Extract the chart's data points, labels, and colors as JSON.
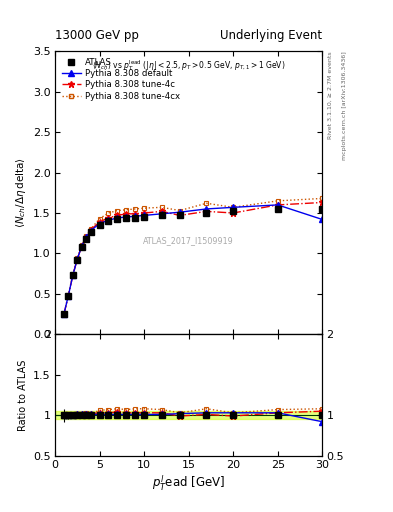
{
  "title_left": "13000 GeV pp",
  "title_right": "Underlying Event",
  "watermark": "ATLAS_2017_I1509919",
  "xlabel": "$p_T^l$ead [GeV]",
  "ylabel_main": "$\\langle N_{ch}/\\Delta\\eta\\,\\mathrm{delta}\\rangle$",
  "ylabel_ratio": "Ratio to ATLAS",
  "right_label1": "Rivet 3.1.10, ≥ 2.7M events",
  "right_label2": "mcplots.cern.ch [arXiv:1306.3436]",
  "xlim": [
    0,
    30
  ],
  "ylim_main": [
    0,
    3.5
  ],
  "ylim_ratio": [
    0.5,
    2.0
  ],
  "yticks_main": [
    0,
    0.5,
    1.0,
    1.5,
    2.0,
    2.5,
    3.0,
    3.5
  ],
  "yticks_ratio": [
    0.5,
    1.0,
    1.5,
    2.0
  ],
  "xticks": [
    0,
    5,
    10,
    15,
    20,
    25,
    30
  ],
  "atlas_x": [
    1.0,
    1.5,
    2.0,
    2.5,
    3.0,
    3.5,
    4.0,
    5.0,
    6.0,
    7.0,
    8.0,
    9.0,
    10.0,
    12.0,
    14.0,
    17.0,
    20.0,
    25.0,
    30.0
  ],
  "atlas_y": [
    0.25,
    0.48,
    0.73,
    0.92,
    1.08,
    1.18,
    1.27,
    1.35,
    1.4,
    1.42,
    1.44,
    1.44,
    1.45,
    1.47,
    1.48,
    1.5,
    1.52,
    1.55,
    1.55
  ],
  "atlas_yerr": [
    0.02,
    0.02,
    0.02,
    0.02,
    0.02,
    0.02,
    0.02,
    0.02,
    0.02,
    0.02,
    0.02,
    0.02,
    0.02,
    0.02,
    0.02,
    0.03,
    0.03,
    0.04,
    0.07
  ],
  "py_def_x": [
    1.0,
    1.5,
    2.0,
    2.5,
    3.0,
    3.5,
    4.0,
    5.0,
    6.0,
    7.0,
    8.0,
    9.0,
    10.0,
    12.0,
    14.0,
    17.0,
    20.0,
    25.0,
    30.0
  ],
  "py_def_y": [
    0.25,
    0.48,
    0.73,
    0.93,
    1.09,
    1.2,
    1.28,
    1.37,
    1.41,
    1.44,
    1.45,
    1.46,
    1.47,
    1.49,
    1.51,
    1.55,
    1.57,
    1.6,
    1.42
  ],
  "py_def_color": "#0000ee",
  "py_4c_x": [
    1.0,
    1.5,
    2.0,
    2.5,
    3.0,
    3.5,
    4.0,
    5.0,
    6.0,
    7.0,
    8.0,
    9.0,
    10.0,
    12.0,
    14.0,
    17.0,
    20.0,
    25.0,
    30.0
  ],
  "py_4c_y": [
    0.25,
    0.48,
    0.73,
    0.93,
    1.09,
    1.2,
    1.29,
    1.39,
    1.44,
    1.47,
    1.49,
    1.49,
    1.5,
    1.52,
    1.47,
    1.52,
    1.5,
    1.6,
    1.63
  ],
  "py_4c_color": "#ee0000",
  "py_4cx_x": [
    1.0,
    1.5,
    2.0,
    2.5,
    3.0,
    3.5,
    4.0,
    5.0,
    6.0,
    7.0,
    8.0,
    9.0,
    10.0,
    12.0,
    14.0,
    17.0,
    20.0,
    25.0,
    30.0
  ],
  "py_4cx_y": [
    0.25,
    0.49,
    0.74,
    0.94,
    1.1,
    1.21,
    1.3,
    1.43,
    1.5,
    1.53,
    1.54,
    1.55,
    1.56,
    1.57,
    1.53,
    1.62,
    1.57,
    1.65,
    1.68
  ],
  "py_4cx_color": "#cc5500",
  "ratio_def_y": [
    1.0,
    1.0,
    1.0,
    1.01,
    1.01,
    1.02,
    1.01,
    1.01,
    1.01,
    1.01,
    1.01,
    1.01,
    1.01,
    1.01,
    1.02,
    1.03,
    1.03,
    1.03,
    0.92
  ],
  "ratio_4c_y": [
    1.0,
    1.0,
    1.0,
    1.01,
    1.01,
    1.02,
    1.02,
    1.03,
    1.03,
    1.04,
    1.03,
    1.03,
    1.03,
    1.03,
    0.99,
    1.01,
    0.99,
    1.03,
    1.05
  ],
  "ratio_4cx_y": [
    1.0,
    1.02,
    1.01,
    1.02,
    1.02,
    1.03,
    1.02,
    1.06,
    1.07,
    1.08,
    1.07,
    1.08,
    1.08,
    1.07,
    1.03,
    1.08,
    1.03,
    1.07,
    1.08
  ],
  "band_color": "#ccff00",
  "band_alpha": 0.5,
  "band_lo": 0.95,
  "band_hi": 1.05,
  "green_line_color": "#00bb00"
}
